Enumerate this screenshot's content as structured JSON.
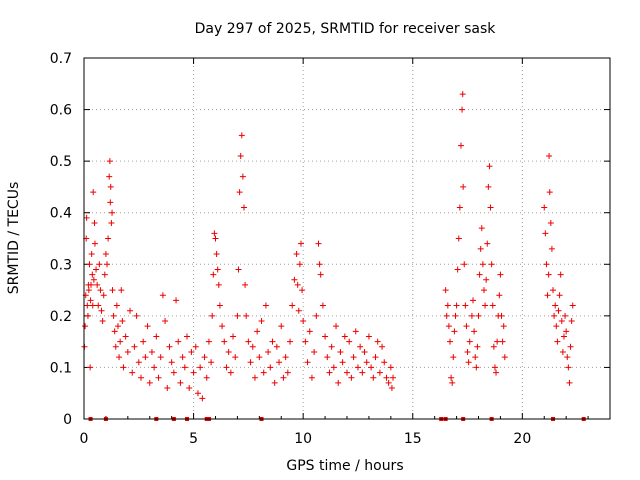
{
  "chart_data": {
    "type": "scatter",
    "title": "Day 297 of 2025, SRMTID for receiver sask",
    "xlabel": "GPS time / hours",
    "ylabel": "SRMTID / TECUs",
    "xlim": [
      0,
      24
    ],
    "ylim": [
      0,
      0.7
    ],
    "x_ticks": [
      0,
      5,
      10,
      15,
      20
    ],
    "y_ticks": [
      0,
      0.1,
      0.2,
      0.3,
      0.4,
      0.5,
      0.6,
      0.7
    ],
    "x_tick_labels": [
      "0",
      "5",
      "10",
      "15",
      "20"
    ],
    "y_tick_labels": [
      "0",
      "0.1",
      "0.2",
      "0.3",
      "0.4",
      "0.5",
      "0.6",
      "0.7"
    ],
    "grid": true,
    "marker": "+",
    "color": "#ee0000",
    "series": [
      {
        "name": "SRMTID",
        "points": [
          [
            0.02,
            0.14
          ],
          [
            0.05,
            0.18
          ],
          [
            0.08,
            0.24
          ],
          [
            0.1,
            0.35
          ],
          [
            0.12,
            0.39
          ],
          [
            0.15,
            0.22
          ],
          [
            0.18,
            0.2
          ],
          [
            0.2,
            0.26
          ],
          [
            0.22,
            0.25
          ],
          [
            0.25,
            0.3
          ],
          [
            0.28,
            0.1
          ],
          [
            0.3,
            0.23
          ],
          [
            0.32,
            0.26
          ],
          [
            0.35,
            0.32
          ],
          [
            0.38,
            0.28
          ],
          [
            0.4,
            0.22
          ],
          [
            0.42,
            0.44
          ],
          [
            0.45,
            0.27
          ],
          [
            0.48,
            0.38
          ],
          [
            0.5,
            0.34
          ],
          [
            0.55,
            0.29
          ],
          [
            0.6,
            0.26
          ],
          [
            0.65,
            0.22
          ],
          [
            0.7,
            0.3
          ],
          [
            0.75,
            0.25
          ],
          [
            0.8,
            0.21
          ],
          [
            0.85,
            0.19
          ],
          [
            0.9,
            0.24
          ],
          [
            0.95,
            0.28
          ],
          [
            1.0,
            0.32
          ],
          [
            1.05,
            0.3
          ],
          [
            1.1,
            0.35
          ],
          [
            1.15,
            0.47
          ],
          [
            1.18,
            0.5
          ],
          [
            1.2,
            0.42
          ],
          [
            1.22,
            0.45
          ],
          [
            1.25,
            0.38
          ],
          [
            1.28,
            0.4
          ],
          [
            1.3,
            0.25
          ],
          [
            1.35,
            0.2
          ],
          [
            1.4,
            0.17
          ],
          [
            1.45,
            0.14
          ],
          [
            1.5,
            0.22
          ],
          [
            1.55,
            0.18
          ],
          [
            1.6,
            0.12
          ],
          [
            1.65,
            0.15
          ],
          [
            1.7,
            0.25
          ],
          [
            1.75,
            0.19
          ],
          [
            1.8,
            0.1
          ],
          [
            1.9,
            0.16
          ],
          [
            2.0,
            0.13
          ],
          [
            2.1,
            0.21
          ],
          [
            2.2,
            0.09
          ],
          [
            2.3,
            0.14
          ],
          [
            2.4,
            0.2
          ],
          [
            2.5,
            0.11
          ],
          [
            2.6,
            0.08
          ],
          [
            2.7,
            0.15
          ],
          [
            2.8,
            0.12
          ],
          [
            2.9,
            0.18
          ],
          [
            3.0,
            0.07
          ],
          [
            3.1,
            0.13
          ],
          [
            3.2,
            0.1
          ],
          [
            3.3,
            0.16
          ],
          [
            3.4,
            0.08
          ],
          [
            3.5,
            0.12
          ],
          [
            3.6,
            0.24
          ],
          [
            3.7,
            0.19
          ],
          [
            3.8,
            0.06
          ],
          [
            3.9,
            0.14
          ],
          [
            4.0,
            0.11
          ],
          [
            4.1,
            0.09
          ],
          [
            4.2,
            0.23
          ],
          [
            4.3,
            0.15
          ],
          [
            4.4,
            0.07
          ],
          [
            4.5,
            0.12
          ],
          [
            4.6,
            0.1
          ],
          [
            4.7,
            0.16
          ],
          [
            4.8,
            0.06
          ],
          [
            4.9,
            0.13
          ],
          [
            5.0,
            0.09
          ],
          [
            5.1,
            0.14
          ],
          [
            5.2,
            0.05
          ],
          [
            5.3,
            0.1
          ],
          [
            5.4,
            0.04
          ],
          [
            5.5,
            0.12
          ],
          [
            5.6,
            0.08
          ],
          [
            5.7,
            0.15
          ],
          [
            5.8,
            0.11
          ],
          [
            5.85,
            0.2
          ],
          [
            5.9,
            0.28
          ],
          [
            5.95,
            0.36
          ],
          [
            6.0,
            0.35
          ],
          [
            6.05,
            0.32
          ],
          [
            6.1,
            0.29
          ],
          [
            6.15,
            0.26
          ],
          [
            6.2,
            0.22
          ],
          [
            6.3,
            0.18
          ],
          [
            6.4,
            0.15
          ],
          [
            6.5,
            0.1
          ],
          [
            6.6,
            0.13
          ],
          [
            6.7,
            0.09
          ],
          [
            6.8,
            0.16
          ],
          [
            6.9,
            0.12
          ],
          [
            7.0,
            0.2
          ],
          [
            7.05,
            0.29
          ],
          [
            7.1,
            0.44
          ],
          [
            7.15,
            0.51
          ],
          [
            7.2,
            0.55
          ],
          [
            7.25,
            0.47
          ],
          [
            7.3,
            0.41
          ],
          [
            7.35,
            0.26
          ],
          [
            7.4,
            0.2
          ],
          [
            7.5,
            0.15
          ],
          [
            7.6,
            0.11
          ],
          [
            7.7,
            0.14
          ],
          [
            7.8,
            0.08
          ],
          [
            7.9,
            0.17
          ],
          [
            8.0,
            0.12
          ],
          [
            8.1,
            0.19
          ],
          [
            8.2,
            0.09
          ],
          [
            8.3,
            0.22
          ],
          [
            8.4,
            0.13
          ],
          [
            8.5,
            0.1
          ],
          [
            8.6,
            0.15
          ],
          [
            8.7,
            0.07
          ],
          [
            8.8,
            0.14
          ],
          [
            8.9,
            0.11
          ],
          [
            9.0,
            0.18
          ],
          [
            9.1,
            0.08
          ],
          [
            9.2,
            0.12
          ],
          [
            9.3,
            0.09
          ],
          [
            9.4,
            0.15
          ],
          [
            9.5,
            0.22
          ],
          [
            9.6,
            0.27
          ],
          [
            9.7,
            0.32
          ],
          [
            9.75,
            0.26
          ],
          [
            9.8,
            0.21
          ],
          [
            9.85,
            0.3
          ],
          [
            9.9,
            0.34
          ],
          [
            9.95,
            0.25
          ],
          [
            10.0,
            0.19
          ],
          [
            10.1,
            0.15
          ],
          [
            10.2,
            0.11
          ],
          [
            10.3,
            0.17
          ],
          [
            10.4,
            0.08
          ],
          [
            10.5,
            0.13
          ],
          [
            10.6,
            0.2
          ],
          [
            10.7,
            0.34
          ],
          [
            10.75,
            0.3
          ],
          [
            10.8,
            0.28
          ],
          [
            10.9,
            0.22
          ],
          [
            11.0,
            0.16
          ],
          [
            11.1,
            0.12
          ],
          [
            11.2,
            0.09
          ],
          [
            11.3,
            0.14
          ],
          [
            11.4,
            0.1
          ],
          [
            11.5,
            0.18
          ],
          [
            11.6,
            0.07
          ],
          [
            11.7,
            0.13
          ],
          [
            11.8,
            0.11
          ],
          [
            11.9,
            0.16
          ],
          [
            12.0,
            0.09
          ],
          [
            12.1,
            0.15
          ],
          [
            12.2,
            0.08
          ],
          [
            12.3,
            0.12
          ],
          [
            12.4,
            0.17
          ],
          [
            12.5,
            0.1
          ],
          [
            12.6,
            0.14
          ],
          [
            12.7,
            0.09
          ],
          [
            12.8,
            0.13
          ],
          [
            12.9,
            0.11
          ],
          [
            13.0,
            0.16
          ],
          [
            13.1,
            0.1
          ],
          [
            13.2,
            0.08
          ],
          [
            13.3,
            0.12
          ],
          [
            13.4,
            0.15
          ],
          [
            13.5,
            0.09
          ],
          [
            13.6,
            0.14
          ],
          [
            13.7,
            0.11
          ],
          [
            13.8,
            0.08
          ],
          [
            13.9,
            0.07
          ],
          [
            14.0,
            0.1
          ],
          [
            14.05,
            0.06
          ],
          [
            14.1,
            0.08
          ],
          [
            16.5,
            0.25
          ],
          [
            16.55,
            0.2
          ],
          [
            16.6,
            0.22
          ],
          [
            16.65,
            0.18
          ],
          [
            16.7,
            0.15
          ],
          [
            16.75,
            0.08
          ],
          [
            16.8,
            0.07
          ],
          [
            16.85,
            0.12
          ],
          [
            16.9,
            0.17
          ],
          [
            16.95,
            0.2
          ],
          [
            17.0,
            0.22
          ],
          [
            17.05,
            0.29
          ],
          [
            17.1,
            0.35
          ],
          [
            17.15,
            0.41
          ],
          [
            17.2,
            0.53
          ],
          [
            17.25,
            0.6
          ],
          [
            17.28,
            0.63
          ],
          [
            17.3,
            0.45
          ],
          [
            17.35,
            0.3
          ],
          [
            17.4,
            0.22
          ],
          [
            17.45,
            0.18
          ],
          [
            17.5,
            0.13
          ],
          [
            17.55,
            0.11
          ],
          [
            17.6,
            0.15
          ],
          [
            17.7,
            0.2
          ],
          [
            17.75,
            0.23
          ],
          [
            17.8,
            0.17
          ],
          [
            17.85,
            0.12
          ],
          [
            17.9,
            0.1
          ],
          [
            17.95,
            0.14
          ],
          [
            18.0,
            0.2
          ],
          [
            18.05,
            0.28
          ],
          [
            18.1,
            0.33
          ],
          [
            18.15,
            0.37
          ],
          [
            18.2,
            0.3
          ],
          [
            18.25,
            0.25
          ],
          [
            18.3,
            0.22
          ],
          [
            18.35,
            0.27
          ],
          [
            18.4,
            0.34
          ],
          [
            18.45,
            0.45
          ],
          [
            18.5,
            0.49
          ],
          [
            18.55,
            0.41
          ],
          [
            18.6,
            0.3
          ],
          [
            18.65,
            0.22
          ],
          [
            18.7,
            0.14
          ],
          [
            18.75,
            0.1
          ],
          [
            18.8,
            0.09
          ],
          [
            18.85,
            0.15
          ],
          [
            18.9,
            0.2
          ],
          [
            18.95,
            0.24
          ],
          [
            19.0,
            0.28
          ],
          [
            19.05,
            0.2
          ],
          [
            19.1,
            0.15
          ],
          [
            19.15,
            0.18
          ],
          [
            19.2,
            0.12
          ],
          [
            21.0,
            0.41
          ],
          [
            21.05,
            0.36
          ],
          [
            21.1,
            0.3
          ],
          [
            21.15,
            0.24
          ],
          [
            21.2,
            0.28
          ],
          [
            21.22,
            0.51
          ],
          [
            21.25,
            0.44
          ],
          [
            21.3,
            0.38
          ],
          [
            21.35,
            0.33
          ],
          [
            21.4,
            0.25
          ],
          [
            21.45,
            0.2
          ],
          [
            21.5,
            0.22
          ],
          [
            21.55,
            0.18
          ],
          [
            21.6,
            0.15
          ],
          [
            21.65,
            0.21
          ],
          [
            21.7,
            0.24
          ],
          [
            21.75,
            0.28
          ],
          [
            21.8,
            0.19
          ],
          [
            21.85,
            0.13
          ],
          [
            21.9,
            0.16
          ],
          [
            21.95,
            0.2
          ],
          [
            22.0,
            0.17
          ],
          [
            22.05,
            0.12
          ],
          [
            22.1,
            0.1
          ],
          [
            22.15,
            0.07
          ],
          [
            22.2,
            0.14
          ],
          [
            22.25,
            0.19
          ],
          [
            22.3,
            0.22
          ]
        ]
      }
    ],
    "zero_points_x": [
      0.3,
      1.0,
      3.3,
      4.1,
      4.7,
      5.6,
      5.7,
      8.1,
      16.3,
      16.5,
      17.3,
      18.6,
      21.4,
      22.8
    ]
  }
}
